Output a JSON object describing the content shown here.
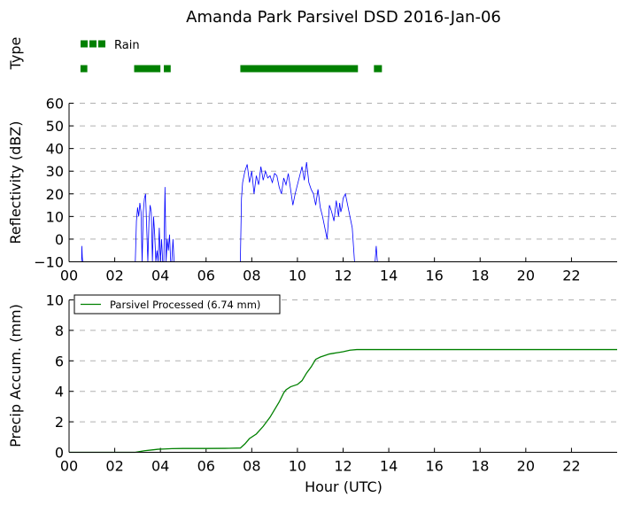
{
  "title": "Amanda Park Parsivel DSD 2016-Jan-06",
  "chart_data": [
    {
      "panel": "type",
      "type": "scatter",
      "ylabel": "Type",
      "legend": {
        "label": "Rain",
        "placement": "top-left"
      },
      "rain_intervals": [
        [
          0.5,
          0.8
        ],
        [
          2.85,
          4.0
        ],
        [
          4.15,
          4.45
        ],
        [
          7.5,
          12.65
        ],
        [
          13.35,
          13.7
        ]
      ],
      "colors": {
        "rain": "#008000"
      }
    },
    {
      "panel": "reflectivity",
      "type": "line",
      "xlabel": "",
      "ylabel": "Reflectivity (dBZ)",
      "ylim": [
        -10,
        60
      ],
      "xlim": [
        0,
        24
      ],
      "yticks": [
        "−10",
        "0",
        "10",
        "20",
        "30",
        "40",
        "50",
        "60"
      ],
      "xticks": [
        "00",
        "02",
        "04",
        "06",
        "08",
        "10",
        "12",
        "14",
        "16",
        "18",
        "20",
        "22"
      ],
      "grid": "horizontal dashed",
      "colors": {
        "line": "#0000ff"
      },
      "series": [
        {
          "x": [
            0,
            0.55,
            0.56,
            0.58,
            0.6,
            2.9,
            2.95,
            3.0,
            3.05,
            3.1,
            3.15,
            3.2,
            3.25,
            3.3,
            3.35,
            3.4,
            3.45,
            3.5,
            3.55,
            3.6,
            3.65,
            3.7,
            3.75,
            3.8,
            3.85,
            3.9,
            3.95,
            4.0,
            4.05,
            4.1,
            4.15,
            4.2,
            4.25,
            4.3,
            4.35,
            4.4,
            4.45,
            4.5,
            4.55,
            4.6,
            7.5,
            7.55,
            7.6,
            7.7,
            7.8,
            7.9,
            8.0,
            8.1,
            8.2,
            8.3,
            8.4,
            8.5,
            8.6,
            8.7,
            8.8,
            8.9,
            9.0,
            9.1,
            9.2,
            9.3,
            9.4,
            9.5,
            9.6,
            9.7,
            9.8,
            9.9,
            10.0,
            10.1,
            10.2,
            10.3,
            10.4,
            10.5,
            10.6,
            10.7,
            10.8,
            10.9,
            11.0,
            11.1,
            11.2,
            11.3,
            11.4,
            11.5,
            11.6,
            11.7,
            11.8,
            11.85,
            11.9,
            11.95,
            12.0,
            12.1,
            12.2,
            12.3,
            12.4,
            12.5,
            12.55,
            12.6,
            12.65,
            13.4,
            13.45,
            13.5,
            13.55,
            24
          ],
          "y": [
            -10,
            -10,
            -3,
            -8,
            -10,
            -10,
            8,
            14,
            10,
            16,
            12,
            -10,
            12,
            18,
            20,
            5,
            -10,
            8,
            15,
            12,
            -10,
            10,
            2,
            -10,
            -5,
            -10,
            5,
            -10,
            0,
            -10,
            -10,
            23,
            -10,
            0,
            -5,
            2,
            -10,
            -10,
            0,
            -10,
            -10,
            18,
            25,
            30,
            33,
            25,
            30,
            20,
            28,
            24,
            32,
            26,
            30,
            27,
            28,
            25,
            29,
            28,
            23,
            20,
            27,
            24,
            29,
            22,
            15,
            20,
            24,
            28,
            32,
            26,
            34,
            25,
            22,
            20,
            15,
            22,
            14,
            10,
            5,
            0,
            15,
            12,
            8,
            17,
            10,
            16,
            12,
            14,
            18,
            20,
            15,
            10,
            5,
            -10,
            -10,
            -10,
            -10,
            -10,
            -3,
            -10,
            -10,
            -10
          ]
        }
      ]
    },
    {
      "panel": "precip",
      "type": "line",
      "xlabel": "Hour (UTC)",
      "ylabel": "Precip Accum. (mm)",
      "ylim": [
        0,
        10
      ],
      "xlim": [
        0,
        24
      ],
      "yticks": [
        "0",
        "2",
        "4",
        "6",
        "8",
        "10"
      ],
      "xticks": [
        "00",
        "02",
        "04",
        "06",
        "08",
        "10",
        "12",
        "14",
        "16",
        "18",
        "20",
        "22"
      ],
      "grid": "horizontal dashed",
      "legend": {
        "label": "Parsivel Processed (6.74 mm)",
        "placement": "top-left"
      },
      "colors": {
        "line": "#008000"
      },
      "series": [
        {
          "name": "Parsivel Processed (6.74 mm)",
          "x": [
            0,
            2.9,
            3.1,
            3.3,
            3.6,
            3.9,
            4.2,
            4.5,
            5.0,
            6.0,
            7.0,
            7.5,
            7.7,
            7.9,
            8.2,
            8.5,
            8.8,
            9.0,
            9.2,
            9.4,
            9.5,
            9.7,
            9.9,
            10.0,
            10.2,
            10.4,
            10.6,
            10.8,
            11.0,
            11.2,
            11.4,
            11.6,
            11.8,
            12.0,
            12.3,
            12.6,
            13.0,
            24
          ],
          "y": [
            0,
            0,
            0.05,
            0.1,
            0.15,
            0.2,
            0.22,
            0.24,
            0.25,
            0.25,
            0.26,
            0.28,
            0.55,
            0.9,
            1.2,
            1.7,
            2.3,
            2.8,
            3.3,
            3.9,
            4.1,
            4.3,
            4.4,
            4.45,
            4.7,
            5.2,
            5.6,
            6.1,
            6.25,
            6.35,
            6.45,
            6.5,
            6.55,
            6.6,
            6.7,
            6.74,
            6.74,
            6.74
          ]
        }
      ]
    }
  ]
}
